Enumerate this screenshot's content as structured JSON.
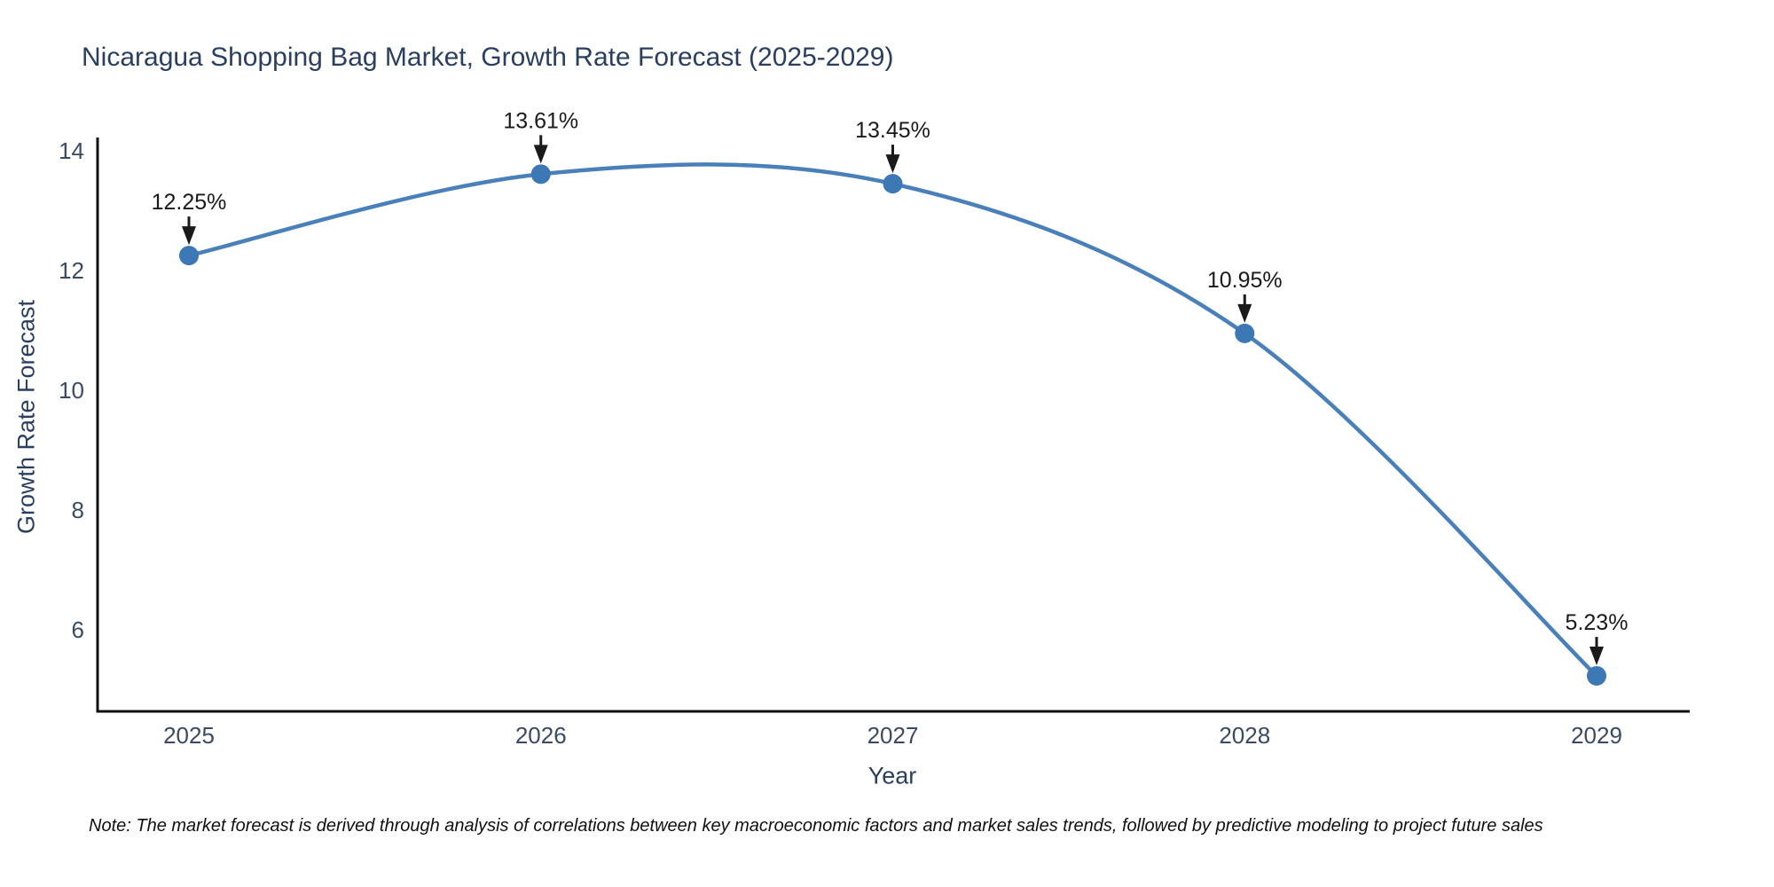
{
  "note": "Note: The market forecast is derived through analysis of correlations between key macroeconomic factors and market sales trends, followed by predictive modeling to project future sales",
  "chart_data": {
    "type": "line",
    "title": "Nicaragua Shopping Bag Market, Growth Rate Forecast (2025-2029)",
    "xlabel": "Year",
    "ylabel": "Growth Rate Forecast",
    "x": [
      2025,
      2026,
      2027,
      2028,
      2029
    ],
    "values": [
      12.25,
      13.61,
      13.45,
      10.95,
      5.23
    ],
    "point_labels": [
      "12.25%",
      "13.61%",
      "13.45%",
      "10.95%",
      "5.23%"
    ],
    "xticks": [
      "2025",
      "2026",
      "2027",
      "2028",
      "2029"
    ],
    "yticks": [
      6,
      8,
      10,
      12,
      14
    ],
    "ylim": [
      4.6,
      14.6
    ],
    "grid": false,
    "legend_position": "none",
    "line_shape": "spline",
    "line_color": "#4a80b9",
    "marker_color": "#3c78b4",
    "axis_color": "#111111",
    "annotation_color": "#1a1a1a",
    "title_color": "#2a3f5f",
    "tick_color": "#3b4a63"
  }
}
